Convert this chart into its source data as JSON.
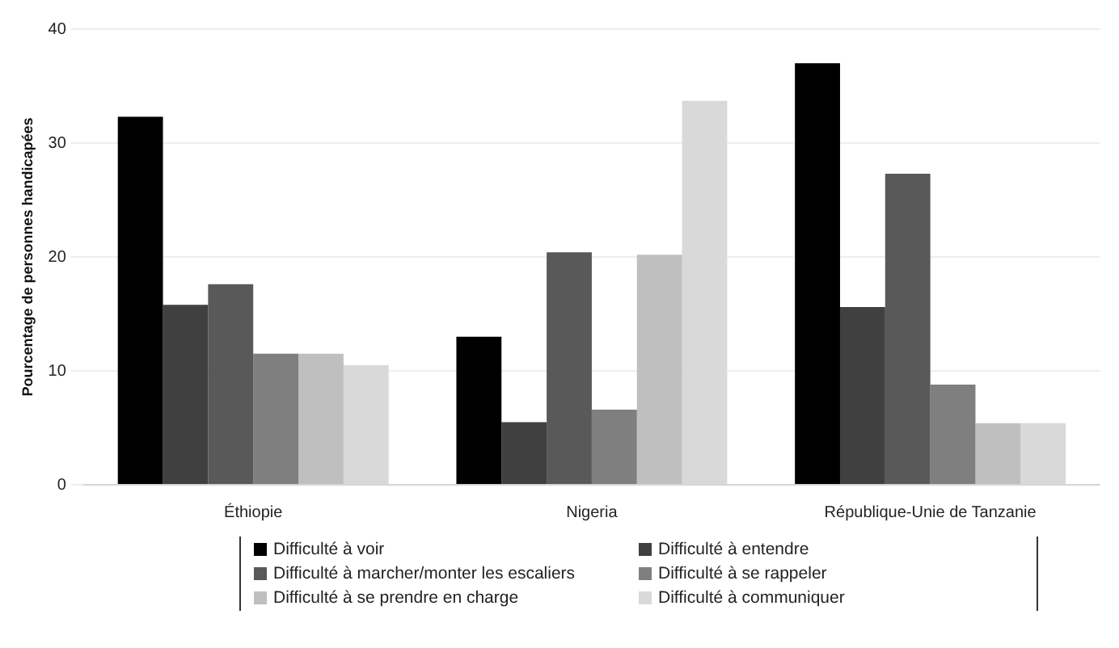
{
  "chart_data": {
    "type": "bar",
    "ylabel": "Pourcentage de personnes handicapées",
    "categories": [
      "Éthiopie",
      "Nigeria",
      "République-Unie de Tanzanie"
    ],
    "series": [
      {
        "name": "Difficulté à voir",
        "color": "#000000",
        "values": [
          32.3,
          13.0,
          37.0
        ]
      },
      {
        "name": "Difficulté à entendre",
        "color": "#404040",
        "values": [
          15.8,
          5.5,
          15.6
        ]
      },
      {
        "name": "Difficulté à marcher/monter les escaliers",
        "color": "#595959",
        "values": [
          17.6,
          20.4,
          27.3
        ]
      },
      {
        "name": "Difficulté à se rappeler",
        "color": "#7f7f7f",
        "values": [
          11.5,
          6.6,
          8.8
        ]
      },
      {
        "name": "Difficulté à se prendre en charge",
        "color": "#bfbfbf",
        "values": [
          11.5,
          20.2,
          5.4
        ]
      },
      {
        "name": "Difficulté à communiquer",
        "color": "#d9d9d9",
        "values": [
          10.5,
          33.7,
          5.4
        ]
      }
    ],
    "ylim": [
      0,
      40
    ],
    "yticks": [
      0,
      10,
      20,
      30,
      40
    ],
    "grid": "y",
    "legend": "bottom"
  }
}
